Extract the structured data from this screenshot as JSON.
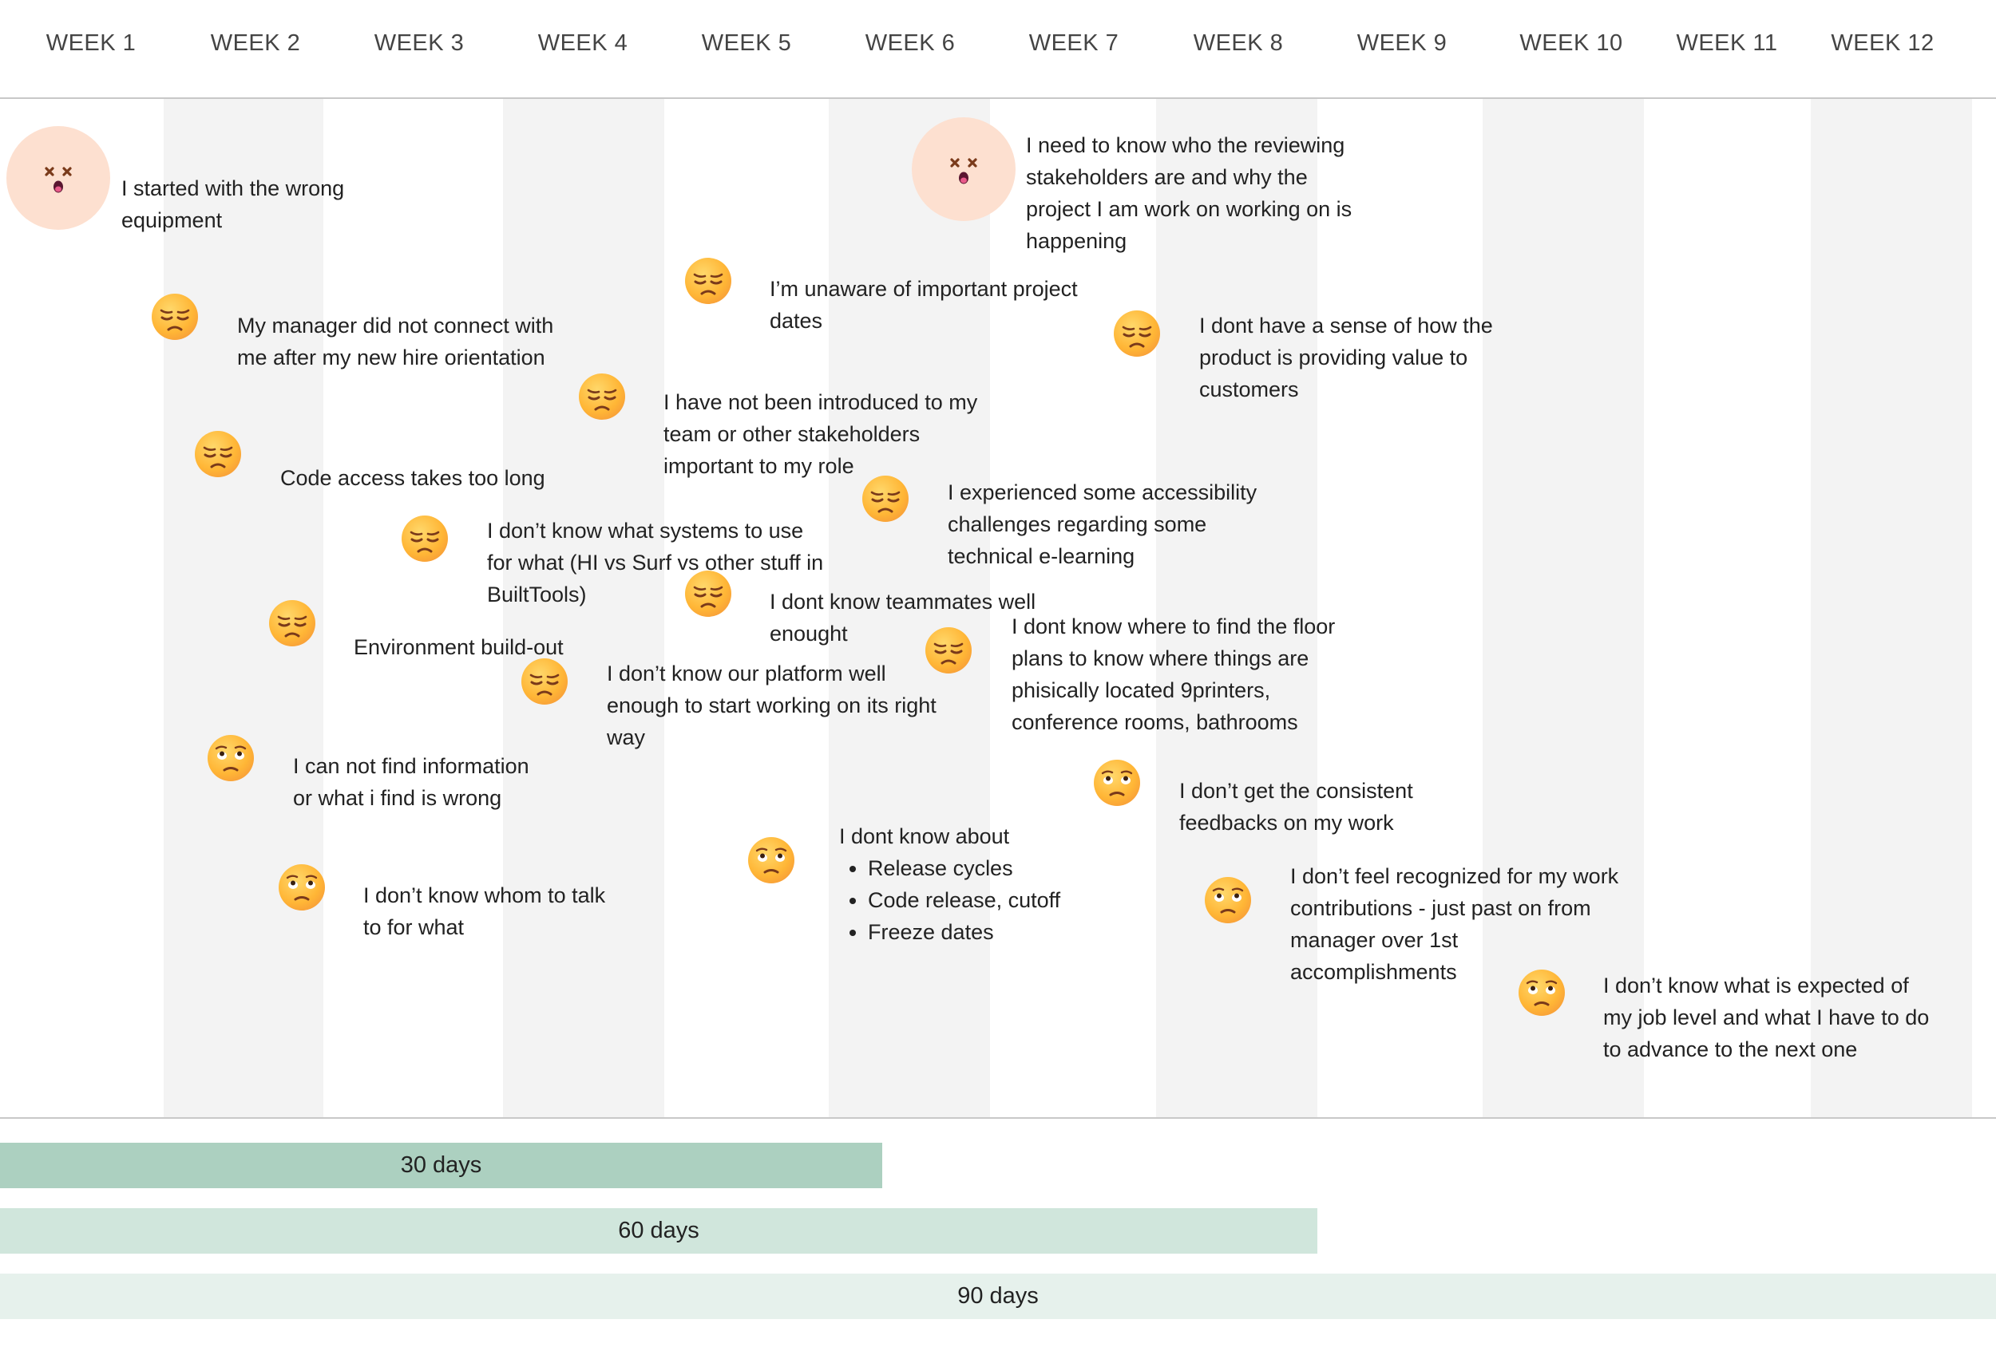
{
  "weeks": [
    "WEEK 1",
    "WEEK 2",
    "WEEK 3",
    "WEEK 4",
    "WEEK 5",
    "WEEK 6",
    "WEEK 7",
    "WEEK 8",
    "WEEK 9",
    "WEEK 10",
    "WEEK 11",
    "WEEK 12"
  ],
  "items": [
    {
      "id": "wrong-equipment",
      "face": "dizzy",
      "lines": [
        "I started with the wrong",
        "equipment"
      ]
    },
    {
      "id": "stakeholders-why",
      "face": "dizzy",
      "lines": [
        "I need to know who the reviewing",
        "stakeholders are and why the",
        "project I am work on working on is",
        "happening"
      ]
    },
    {
      "id": "project-dates",
      "face": "sad",
      "lines": [
        "I’m unaware of important project",
        "dates"
      ]
    },
    {
      "id": "manager-connect",
      "face": "sad",
      "lines": [
        "My manager did not connect with",
        "me after my new hire orientation"
      ]
    },
    {
      "id": "product-value",
      "face": "sad",
      "lines": [
        "I dont have a sense of how the",
        "product is providing value to",
        "customers"
      ]
    },
    {
      "id": "not-introduced",
      "face": "sad",
      "lines": [
        "I have not been introduced to my",
        "team or other stakeholders",
        "important to my role"
      ]
    },
    {
      "id": "code-access",
      "face": "sad",
      "lines": [
        "Code access takes too long"
      ]
    },
    {
      "id": "accessibility",
      "face": "sad",
      "lines": [
        "I experienced some accessibility",
        "challenges regarding some",
        "technical e-learning"
      ]
    },
    {
      "id": "systems-to-use",
      "face": "sad",
      "lines": [
        "I don’t know what systems to use",
        "for what (HI vs Surf vs other stuff in",
        "BuiltTools)"
      ]
    },
    {
      "id": "teammates",
      "face": "sad",
      "lines": [
        "I dont know teammates well",
        "enought"
      ]
    },
    {
      "id": "floor-plans",
      "face": "sad",
      "lines": [
        "I dont know where to find the floor",
        "plans to know where things are",
        "phisically located 9printers,",
        "conference rooms, bathrooms"
      ]
    },
    {
      "id": "environment",
      "face": "sad",
      "lines": [
        "Environment build-out"
      ]
    },
    {
      "id": "platform",
      "face": "sad",
      "lines": [
        "I don’t know our platform well",
        "enough to start working on its right",
        "way"
      ]
    },
    {
      "id": "find-information",
      "face": "eyeroll",
      "lines": [
        "I can not find information",
        "or what i find is wrong"
      ]
    },
    {
      "id": "feedbacks",
      "face": "eyeroll",
      "lines": [
        "I don’t get the consistent",
        "feedbacks on my work"
      ]
    },
    {
      "id": "release-cycles",
      "face": "eyeroll",
      "lines": [
        "I dont know about"
      ],
      "bullets": [
        "Release cycles",
        "Code release, cutoff",
        "Freeze dates"
      ]
    },
    {
      "id": "whom-to-talk",
      "face": "eyeroll",
      "lines": [
        "I don’t know whom to talk",
        "to for what"
      ]
    },
    {
      "id": "recognized",
      "face": "eyeroll",
      "lines": [
        "I don’t feel recognized for my work",
        "contributions - just past on from",
        "manager over 1st",
        "accomplishments"
      ]
    },
    {
      "id": "job-level",
      "face": "eyeroll",
      "lines": [
        "I don’t know what is expected of",
        "my job level and what I have to do",
        "to advance to the next one"
      ]
    }
  ],
  "bars": [
    {
      "label": "30 days",
      "color": "#acd0c0"
    },
    {
      "label": "60 days",
      "color": "#d0e6dc"
    },
    {
      "label": "90 days",
      "color": "#e6f1ec"
    }
  ],
  "colors": {
    "stripe": "#f3f3f3",
    "halo": "#fde0d0",
    "divider": "#c8c8c8"
  }
}
